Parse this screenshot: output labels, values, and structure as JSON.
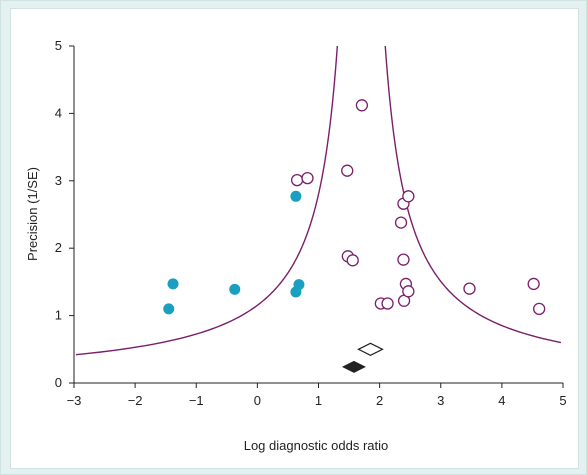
{
  "chart_data": {
    "type": "scatter",
    "title": "",
    "xlabel": "Log diagnostic odds ratio",
    "ylabel": "Precision (1/SE)",
    "xlim": [
      -3,
      5
    ],
    "ylim": [
      0,
      5
    ],
    "xticks": [
      "−3",
      "−2",
      "−1",
      "0",
      "1",
      "2",
      "3",
      "4",
      "5"
    ],
    "yticks": [
      "0",
      "1",
      "2",
      "3",
      "4",
      "5"
    ],
    "grid": false,
    "funnel": {
      "center": 1.7,
      "half_width_factor": 1.96,
      "color": "#7a1f6b"
    },
    "series": [
      {
        "marker": "filled-circle",
        "color": "#1a9fc0",
        "points": [
          {
            "x": -1.45,
            "y": 1.1
          },
          {
            "x": -1.38,
            "y": 1.47
          },
          {
            "x": -0.37,
            "y": 1.39
          },
          {
            "x": 0.63,
            "y": 1.35
          },
          {
            "x": 0.68,
            "y": 1.46
          },
          {
            "x": 0.63,
            "y": 2.77
          }
        ]
      },
      {
        "marker": "open-circle",
        "color": "#7a1f6b",
        "points": [
          {
            "x": 0.65,
            "y": 3.01
          },
          {
            "x": 0.82,
            "y": 3.04
          },
          {
            "x": 1.47,
            "y": 3.15
          },
          {
            "x": 1.71,
            "y": 4.12
          },
          {
            "x": 1.48,
            "y": 1.88
          },
          {
            "x": 1.56,
            "y": 1.82
          },
          {
            "x": 2.02,
            "y": 1.18
          },
          {
            "x": 2.13,
            "y": 1.18
          },
          {
            "x": 2.4,
            "y": 1.22
          },
          {
            "x": 2.35,
            "y": 2.38
          },
          {
            "x": 2.39,
            "y": 2.66
          },
          {
            "x": 2.47,
            "y": 2.77
          },
          {
            "x": 2.39,
            "y": 1.83
          },
          {
            "x": 2.43,
            "y": 1.47
          },
          {
            "x": 2.47,
            "y": 1.36
          },
          {
            "x": 3.47,
            "y": 1.4
          },
          {
            "x": 4.52,
            "y": 1.47
          },
          {
            "x": 4.61,
            "y": 1.1
          }
        ]
      }
    ],
    "summary_markers": [
      {
        "marker": "open-diamond",
        "x": 1.85,
        "y": 0.5,
        "color": "#222222"
      },
      {
        "marker": "filled-diamond",
        "x": 1.58,
        "y": 0.24,
        "color": "#222222"
      }
    ]
  }
}
